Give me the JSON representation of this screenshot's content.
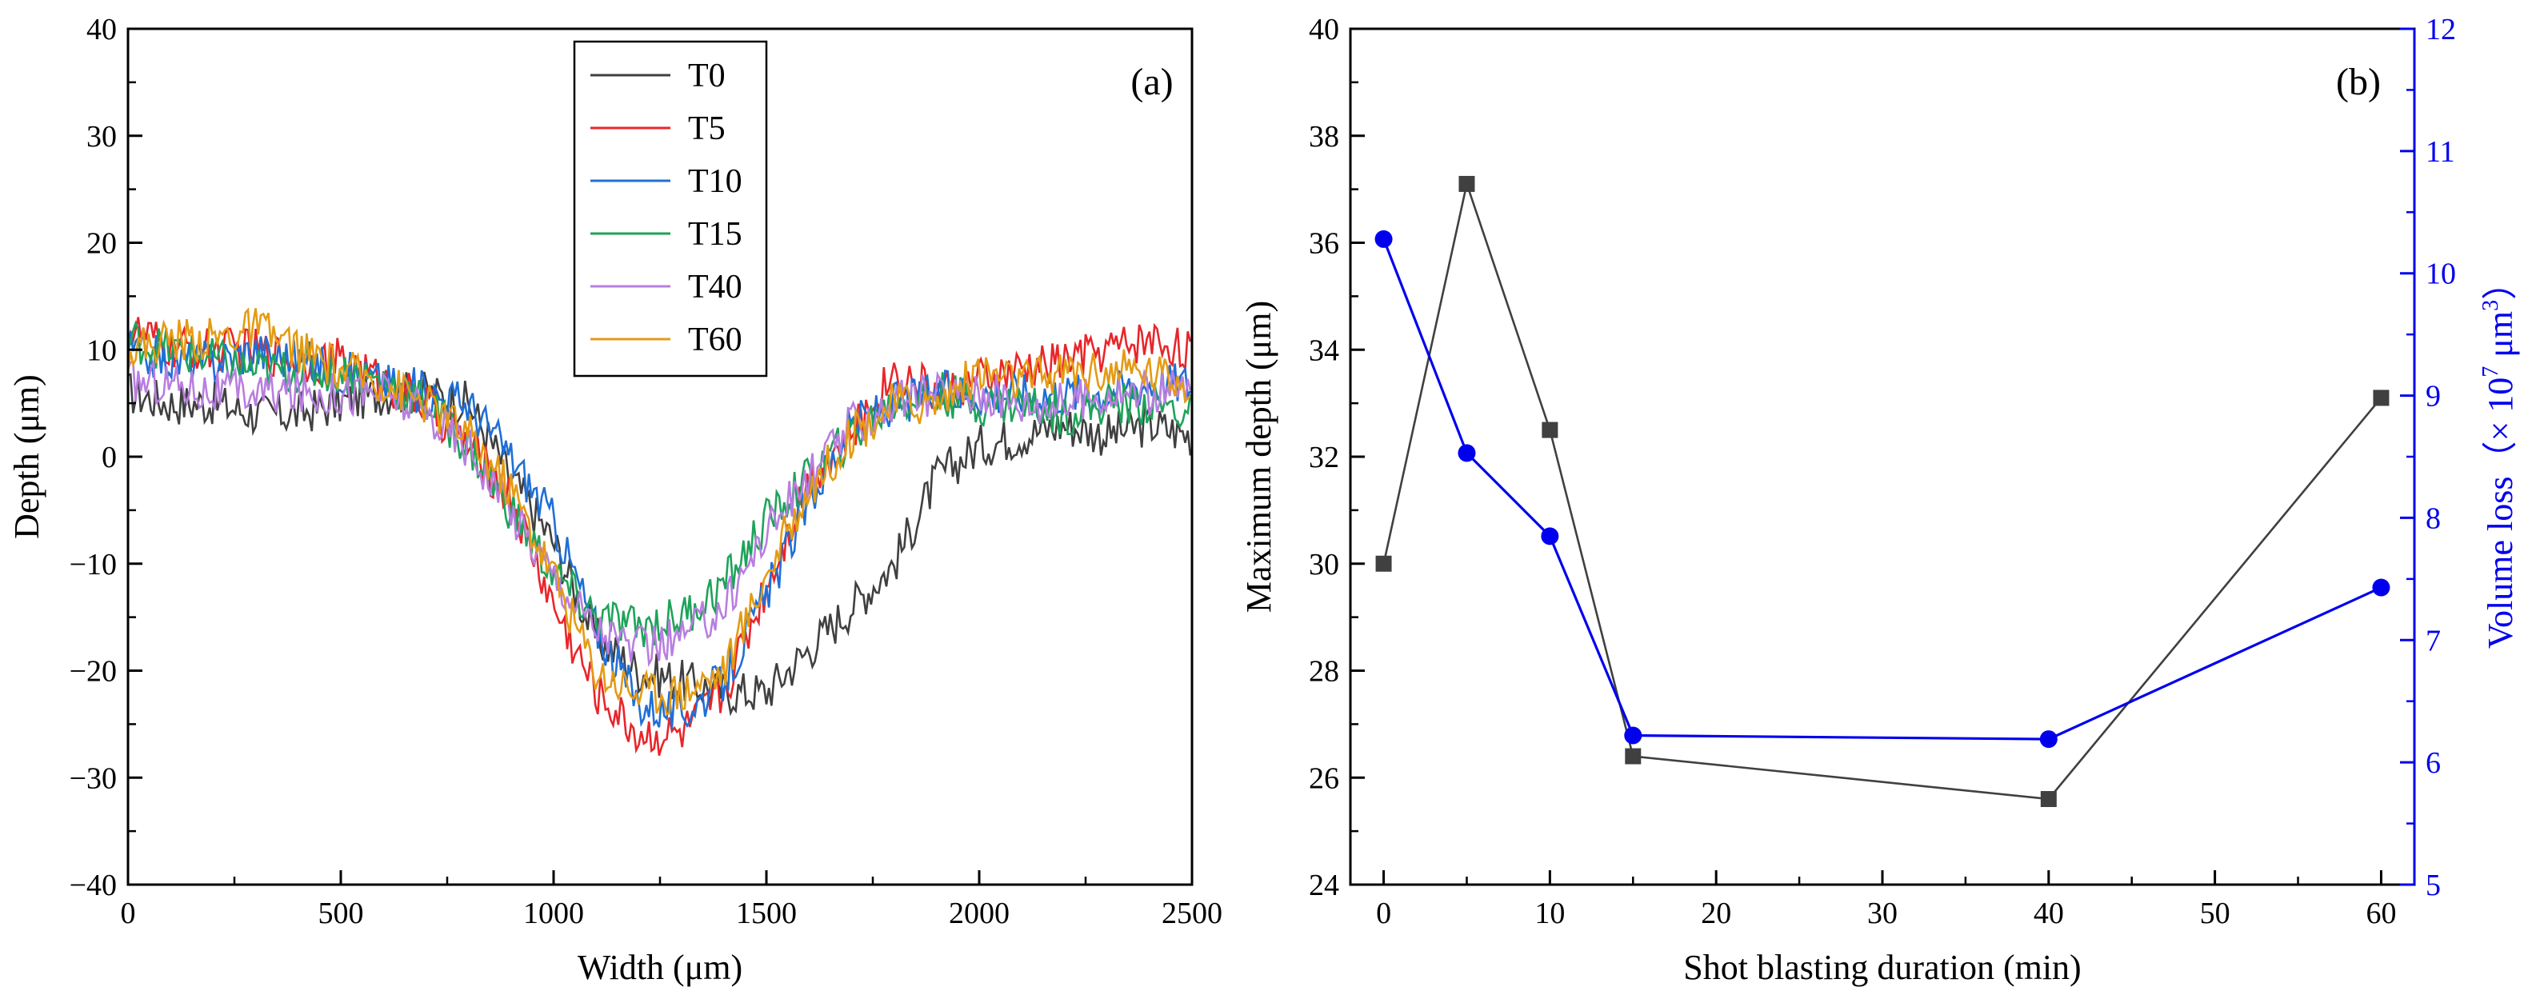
{
  "chart_data": [
    {
      "type": "line",
      "panel_label": "(a)",
      "xlabel": "Width (μm)",
      "ylabel": "Depth (μm)",
      "xlim": [
        0,
        2500
      ],
      "ylim": [
        -40,
        40
      ],
      "xticks": [
        "0",
        "500",
        "1000",
        "1500",
        "2000",
        "2500"
      ],
      "yticks": [
        "−40",
        "−30",
        "−20",
        "−10",
        "0",
        "10",
        "20",
        "30",
        "40"
      ],
      "legend_position": "top-center",
      "x": [
        0,
        100,
        200,
        300,
        400,
        500,
        600,
        700,
        800,
        900,
        1000,
        1100,
        1200,
        1300,
        1400,
        1500,
        1600,
        1700,
        1800,
        1900,
        2000,
        2100,
        2200,
        2300,
        2400,
        2500
      ],
      "series": [
        {
          "name": "T0",
          "color": "#404040",
          "values": [
            6,
            5,
            5,
            4,
            4,
            5,
            6,
            6,
            5,
            -2,
            -8,
            -17,
            -20,
            -21,
            -22,
            -22,
            -18,
            -14,
            -10,
            -2,
            1,
            2,
            3,
            2,
            3,
            2
          ]
        },
        {
          "name": "T5",
          "color": "#e8262a",
          "values": [
            12,
            10,
            10,
            10,
            9,
            9,
            7,
            5,
            1,
            -4,
            -14,
            -22,
            -26,
            -26,
            -22,
            -12,
            -2,
            2,
            8,
            6,
            7,
            8,
            9,
            10,
            11,
            10
          ]
        },
        {
          "name": "T10",
          "color": "#1f6fd6",
          "values": [
            10,
            9,
            9,
            10,
            9,
            8,
            7,
            6,
            5,
            0,
            -6,
            -16,
            -23,
            -24,
            -21,
            -13,
            -4,
            3,
            5,
            6,
            6,
            6,
            6,
            6,
            7,
            7
          ]
        },
        {
          "name": "T15",
          "color": "#1ea35a",
          "values": [
            11,
            10,
            9,
            8,
            8,
            8,
            7,
            5,
            1,
            -5,
            -11,
            -15,
            -16,
            -15,
            -12,
            -6,
            -2,
            2,
            5,
            6,
            5,
            5,
            4,
            5,
            5,
            4
          ]
        },
        {
          "name": "T40",
          "color": "#b87ee0",
          "values": [
            7,
            7,
            6,
            6,
            6,
            6,
            6,
            4,
            1,
            -5,
            -11,
            -16,
            -18,
            -17,
            -14,
            -7,
            -2,
            3,
            5,
            6,
            6,
            5,
            5,
            6,
            6,
            6
          ]
        },
        {
          "name": "T60",
          "color": "#e49b14",
          "values": [
            10,
            11,
            11,
            12,
            10,
            8,
            7,
            5,
            2,
            -3,
            -11,
            -20,
            -22,
            -22,
            -20,
            -11,
            -3,
            2,
            5,
            5,
            8,
            7,
            8,
            8,
            8,
            7
          ]
        }
      ]
    },
    {
      "type": "line",
      "panel_label": "(b)",
      "xlabel": "Shot blasting duration (min)",
      "ylabel": "Maximum depth (μm)",
      "ylabel_right_prefix": "Volume loss（× 10",
      "ylabel_right_exp1": "7",
      "ylabel_right_mid": " μm",
      "ylabel_right_exp2": "3",
      "ylabel_right_suffix": "）",
      "xlim": [
        -2,
        62
      ],
      "ylim": [
        24,
        40
      ],
      "ylim_right": [
        5,
        12
      ],
      "xticks": [
        "0",
        "10",
        "20",
        "30",
        "40",
        "50",
        "60"
      ],
      "yticks": [
        "24",
        "26",
        "28",
        "30",
        "32",
        "34",
        "36",
        "38",
        "40"
      ],
      "yticks_right": [
        "5",
        "6",
        "7",
        "8",
        "9",
        "10",
        "11",
        "12"
      ],
      "right_axis_color": "#0000ee",
      "x": [
        0,
        5,
        10,
        15,
        40,
        60
      ],
      "series": [
        {
          "name": "Maximum depth",
          "axis": "left",
          "marker": "square",
          "color": "#404040",
          "values": [
            30.0,
            37.1,
            32.5,
            26.4,
            25.6,
            33.1
          ]
        },
        {
          "name": "Volume loss",
          "axis": "right",
          "marker": "circle",
          "color": "#0000ee",
          "values": [
            10.28,
            8.53,
            7.85,
            6.22,
            6.19,
            7.43
          ]
        }
      ]
    }
  ]
}
